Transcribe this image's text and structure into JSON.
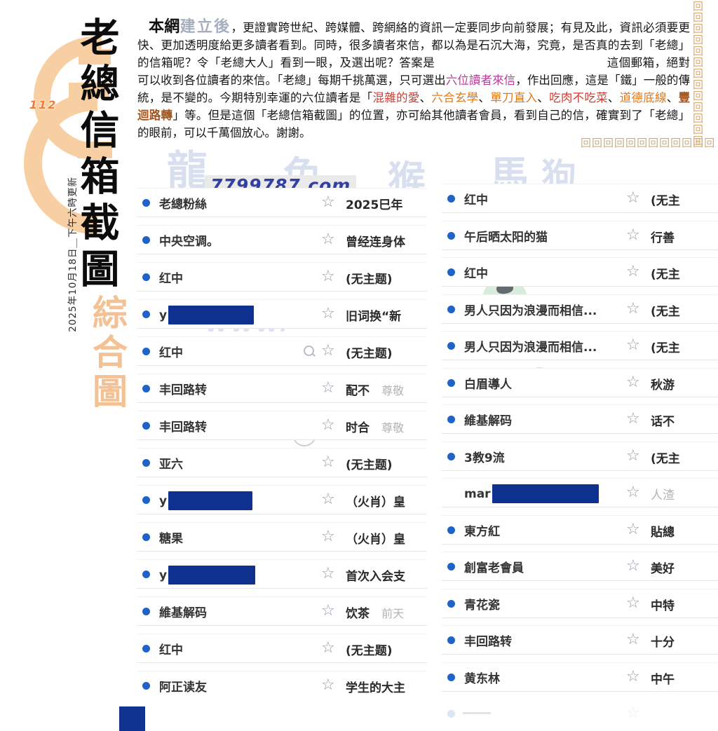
{
  "masthead": {
    "issue_number": "112",
    "title_vertical": "老總信箱截圖",
    "subtitle_vertical": "綜合圖",
    "date_note": "2025年10月18日＿下午六時更新"
  },
  "intro": {
    "segments": [
      {
        "text": "本網",
        "style": "t-lead"
      },
      {
        "text": "建立後",
        "style": "t-ghost"
      },
      {
        "text": "，更證實跨世紀、跨媒體、跨網絡的資訊一定要同步向前發展；有見及此，資訊必須要更快、更加透明度給更多讀者看到。同時，很多讀者來信，都以為是石沉大海，究竟，是否真的去到「老總」的信箱呢？令「老總大人」看到一眼，及選出呢？答案是",
        "style": "t-body"
      },
      {
        "text": "",
        "style": "t-gap"
      },
      {
        "text": "這個郵箱，絕對可以收到各位讀者的來信。「老總」每期千挑萬選，只可選出",
        "style": "t-body"
      },
      {
        "text": "六位讀者來信",
        "style": "t-magenta"
      },
      {
        "text": "，作出回應，這是「鐵」一般的傳統，是不變的。今期特別幸運的六位讀者是「",
        "style": "t-body"
      },
      {
        "text": "混雜的愛",
        "style": "t-red"
      },
      {
        "text": "、",
        "style": "t-body"
      },
      {
        "text": "六合玄學",
        "style": "t-orange"
      },
      {
        "text": "、",
        "style": "t-body"
      },
      {
        "text": "單刀直入",
        "style": "t-orange"
      },
      {
        "text": "、",
        "style": "t-body"
      },
      {
        "text": "吃肉不吃菜",
        "style": "t-red"
      },
      {
        "text": "、",
        "style": "t-body"
      },
      {
        "text": "道德底線",
        "style": "t-orange"
      },
      {
        "text": "、",
        "style": "t-body"
      },
      {
        "text": "豐迴路轉",
        "style": "t-brown"
      },
      {
        "text": "」等。但是這個「老總信箱截圖」的位置，亦可給其他讀者會員，看到自己的信，確實到了「老總」的眼前，可以千萬個放心。謝謝。",
        "style": "t-body"
      }
    ]
  },
  "watermarks": {
    "site": "7799787.com",
    "www": "WWW.",
    "zodiac": [
      "龍",
      "兔",
      "猴",
      "馬",
      "狗"
    ],
    "circled": [
      "2",
      "0"
    ]
  },
  "icons": {
    "star": "☆",
    "meander": "回"
  },
  "mail_list": {
    "left": [
      {
        "sender": "老總粉絲",
        "subject": "2025巳年",
        "dot": true
      },
      {
        "sender": "中央空调。",
        "subject": "曾经连身体",
        "dot": true
      },
      {
        "sender": "红中",
        "subject": "(无主题)",
        "dot": true
      },
      {
        "sender": "y",
        "redacted": true,
        "redact_width": 122,
        "subject": "旧词换“新",
        "dot": true
      },
      {
        "sender": "红中",
        "subject": "(无主题)",
        "dot": true,
        "magnifier": true
      },
      {
        "sender": "丰回路转",
        "subject": "配不",
        "subject2": "尊敬",
        "dot": true
      },
      {
        "sender": "丰回路转",
        "subject": "时合",
        "subject2": "尊敬",
        "dot": true
      },
      {
        "sender": "亚六",
        "subject": "(无主题)",
        "dot": true
      },
      {
        "sender": "y",
        "redacted": true,
        "redact_width": 120,
        "subject": "（火肖）皇",
        "dot": true
      },
      {
        "sender": "糖果",
        "subject": "（火肖）皇",
        "dot": true
      },
      {
        "sender": "y",
        "redacted": true,
        "redact_width": 124,
        "subject": "首次入会支",
        "dot": true
      },
      {
        "sender": "維基解码",
        "subject": "饮茶",
        "subject2": "前天",
        "dot": true
      },
      {
        "sender": "红中",
        "subject": "(无主题)",
        "dot": true
      },
      {
        "sender": "阿正读友",
        "subject": "学生的大主",
        "dot": true
      }
    ],
    "right": [
      {
        "sender": "红中",
        "subject": "(无主",
        "dot": true
      },
      {
        "sender": "午后晒太阳的猫",
        "subject": "行善",
        "dot": true
      },
      {
        "sender": "红中",
        "subject": "(无主",
        "dot": true
      },
      {
        "sender": "男人只因为浪漫而相信...",
        "subject": "(无主",
        "dot": true
      },
      {
        "sender": "男人只因为浪漫而相信...",
        "subject": "(无主",
        "dot": true
      },
      {
        "sender": "白眉導人",
        "subject": "秋游",
        "dot": true
      },
      {
        "sender": "維基解码",
        "subject": "话不",
        "dot": true
      },
      {
        "sender": "3教9流",
        "subject": "(无主",
        "dot": true
      },
      {
        "sender": "mar",
        "redacted": true,
        "redact_width": 152,
        "subject": "人渣",
        "subject_grey": true,
        "dot": false
      },
      {
        "sender": "東方紅",
        "subject": "貼總",
        "dot": true
      },
      {
        "sender": "創富老會員",
        "subject": "美好",
        "dot": true
      },
      {
        "sender": "青花瓷",
        "subject": "中特",
        "dot": true
      },
      {
        "sender": "丰回路转",
        "subject": "十分",
        "dot": true
      },
      {
        "sender": "黄东林",
        "subject": "中午",
        "dot": true
      },
      {
        "sender": "",
        "subject": "",
        "dot": true,
        "faded": true
      }
    ]
  }
}
